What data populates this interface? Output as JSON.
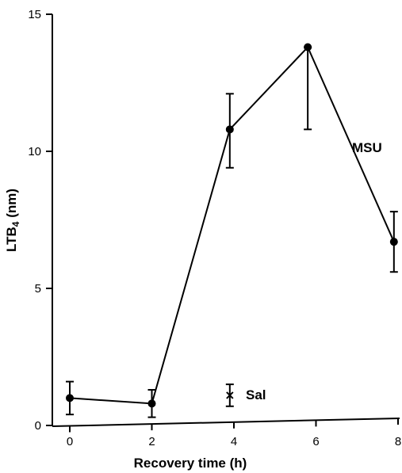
{
  "chart_data": {
    "type": "line",
    "xlabel": "Recovery time (h)",
    "ylabel": "LTB4 (nm)",
    "ylabel_main": "LTB",
    "ylabel_sub": "4",
    "ylabel_unit": " (nm)",
    "xlim": [
      0,
      8
    ],
    "ylim": [
      0,
      15
    ],
    "xticks": [
      0,
      2,
      4,
      6,
      8
    ],
    "yticks": [
      0,
      5,
      10,
      15
    ],
    "grid": false,
    "series": [
      {
        "name": "MSU",
        "marker": "circle",
        "x": [
          0,
          2,
          3.9,
          5.8,
          7.9
        ],
        "y": [
          1.0,
          0.8,
          10.8,
          13.8,
          6.7
        ],
        "err_low": [
          0.4,
          0.3,
          9.4,
          10.8,
          5.6
        ],
        "err_high": [
          1.6,
          1.3,
          12.1,
          13.8,
          7.8
        ]
      },
      {
        "name": "Sal",
        "marker": "x",
        "x": [
          3.9
        ],
        "y": [
          1.1
        ],
        "err_low": [
          0.7
        ],
        "err_high": [
          1.5
        ]
      }
    ]
  }
}
